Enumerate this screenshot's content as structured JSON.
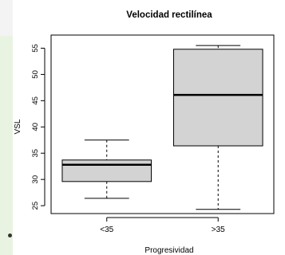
{
  "chart_data": {
    "type": "boxplot",
    "title": "Velocidad rectilínea",
    "xlabel": "Progresividad",
    "ylabel": "VSL",
    "categories": [
      "<35",
      ">35"
    ],
    "ylim": [
      23.5,
      57.5
    ],
    "yticks": [
      25,
      30,
      35,
      40,
      45,
      50,
      55
    ],
    "grid": false,
    "box_color": "#d3d3d3",
    "boxes": [
      {
        "category": "<35",
        "min": 26.4,
        "q1": 29.6,
        "median": 32.8,
        "q3": 33.7,
        "max": 37.5
      },
      {
        "category": ">35",
        "min": 24.3,
        "q1": 36.4,
        "median": 46.1,
        "q3": 54.8,
        "max": 55.5
      }
    ]
  }
}
